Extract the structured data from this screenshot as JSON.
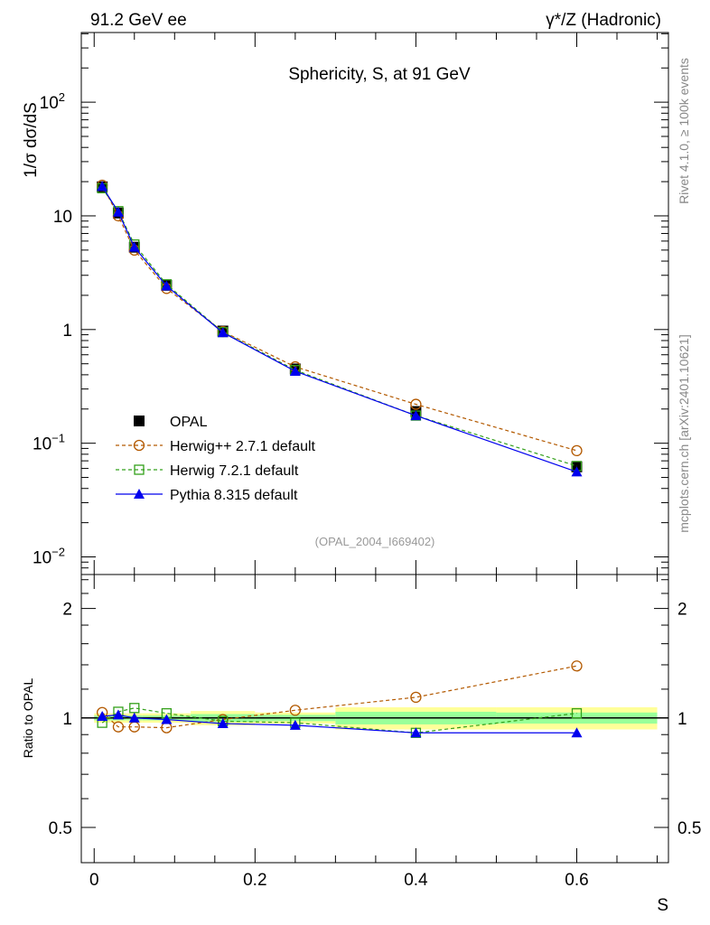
{
  "header": {
    "left": "91.2 GeV ee",
    "right": "γ*/Z (Hadronic)"
  },
  "side": {
    "rivet": "Rivet 4.1.0, ≥ 100k events",
    "mcplots": "mcplots.cern.ch [arXiv:2401.10621]"
  },
  "chart_data": [
    {
      "type": "line",
      "title": "Sphericity, S, at 91 GeV",
      "ylabel": "1/σ  dσ/dS",
      "xlabel": "S",
      "yscale": "log",
      "ylim": [
        0.007,
        410
      ],
      "xlim": [
        -0.016,
        0.714
      ],
      "ytick_labels": [
        {
          "v": 100,
          "label": "10",
          "exp": "2"
        },
        {
          "v": 10,
          "label": "10",
          "exp": ""
        },
        {
          "v": 1,
          "label": "1",
          "exp": ""
        },
        {
          "v": 0.1,
          "label": "10",
          "exp": "−1"
        },
        {
          "v": 0.01,
          "label": "10",
          "exp": "−2"
        }
      ],
      "annotation": "(OPAL_2004_I669402)",
      "legend_position": "middle-left",
      "x": [
        0.01,
        0.03,
        0.05,
        0.09,
        0.16,
        0.25,
        0.4,
        0.6
      ],
      "series": [
        {
          "name": "OPAL",
          "color": "#000000",
          "marker": "square-filled",
          "values": [
            18.0,
            10.6,
            5.3,
            2.45,
            0.97,
            0.45,
            0.19,
            0.062
          ]
        },
        {
          "name": "Herwig++ 2.7.1 default",
          "color": "#b35900",
          "marker": "circle-open",
          "dash": true,
          "values": [
            18.6,
            10.0,
            5.0,
            2.3,
            0.96,
            0.47,
            0.22,
            0.086
          ]
        },
        {
          "name": "Herwig 7.2.1 default",
          "color": "#33a01a",
          "marker": "square-open",
          "dash": true,
          "values": [
            17.5,
            11.0,
            5.6,
            2.5,
            0.95,
            0.44,
            0.175,
            0.063
          ]
        },
        {
          "name": "Pythia 8.315 default",
          "color": "#0000ee",
          "marker": "triangle",
          "dash": false,
          "values": [
            18.2,
            10.8,
            5.3,
            2.42,
            0.94,
            0.43,
            0.175,
            0.056
          ]
        }
      ]
    },
    {
      "type": "line",
      "ylabel": "Ratio to OPAL",
      "yscale": "log",
      "ylim": [
        0.4,
        2.48
      ],
      "ytick_labels": [
        {
          "v": 0.5,
          "label": "0.5"
        },
        {
          "v": 1,
          "label": "1"
        },
        {
          "v": 2,
          "label": "2"
        }
      ],
      "xtick_labels": [
        {
          "v": 0,
          "label": "0"
        },
        {
          "v": 0.2,
          "label": "0.2"
        },
        {
          "v": 0.4,
          "label": "0.4"
        },
        {
          "v": 0.6,
          "label": "0.6"
        }
      ],
      "bin_edges": [
        0,
        0.02,
        0.04,
        0.06,
        0.12,
        0.2,
        0.3,
        0.5,
        0.7
      ],
      "band_yellow": [
        0.03,
        0.03,
        0.03,
        0.03,
        0.045,
        0.035,
        0.07,
        0.07
      ],
      "band_green": [
        0.015,
        0.015,
        0.015,
        0.015,
        0.025,
        0.02,
        0.04,
        0.035
      ],
      "series": [
        {
          "name": "Herwig++ 2.7.1 default",
          "values": [
            1.035,
            0.945,
            0.945,
            0.94,
            0.99,
            1.05,
            1.14,
            1.39
          ]
        },
        {
          "name": "Herwig 7.2.1 default",
          "values": [
            0.97,
            1.04,
            1.065,
            1.03,
            0.98,
            0.97,
            0.91,
            1.03
          ]
        },
        {
          "name": "Pythia 8.315 default",
          "values": [
            1.01,
            1.02,
            1.0,
            0.99,
            0.965,
            0.955,
            0.91,
            0.91
          ]
        }
      ]
    }
  ]
}
